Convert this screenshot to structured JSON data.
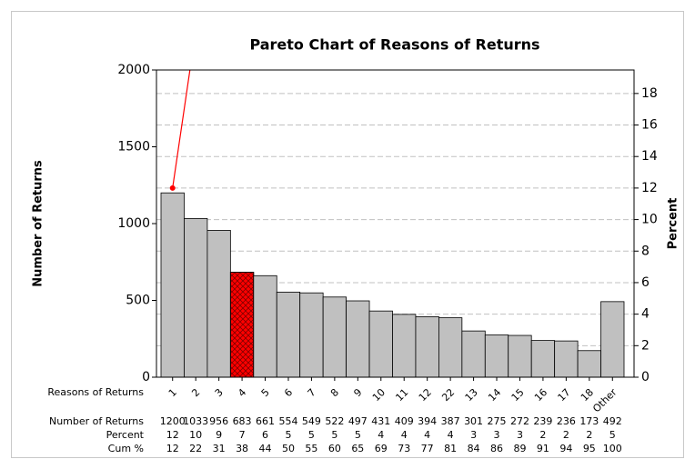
{
  "chart_data": {
    "type": "pareto",
    "title": "Pareto Chart of Reasons of Returns",
    "x_label": "Reasons of Returns",
    "y_label": "Number of Returns",
    "y2_label": "Percent",
    "categories": [
      "1",
      "2",
      "3",
      "4",
      "5",
      "6",
      "7",
      "8",
      "9",
      "10",
      "11",
      "12",
      "22",
      "13",
      "14",
      "15",
      "16",
      "17",
      "18",
      "Other"
    ],
    "values": [
      1200,
      1033,
      956,
      683,
      661,
      554,
      549,
      522,
      497,
      431,
      409,
      394,
      387,
      301,
      275,
      272,
      239,
      236,
      173,
      492
    ],
    "colors": [
      "#c0c0c0",
      "#c0c0c0",
      "#c0c0c0",
      "#ff0000",
      "#c0c0c0",
      "#c0c0c0",
      "#c0c0c0",
      "#c0c0c0",
      "#c0c0c0",
      "#c0c0c0",
      "#c0c0c0",
      "#c0c0c0",
      "#c0c0c0",
      "#c0c0c0",
      "#c0c0c0",
      "#c0c0c0",
      "#c0c0c0",
      "#c0c0c0",
      "#c0c0c0",
      "#c0c0c0"
    ],
    "table_row_labels": [
      "Number of Returns",
      "Percent",
      "Cum %"
    ],
    "percent": [
      12,
      10,
      9,
      7,
      6,
      5,
      5,
      5,
      5,
      4,
      4,
      4,
      4,
      3,
      3,
      3,
      2,
      2,
      2,
      5
    ],
    "cum_percent": [
      12,
      22,
      31,
      38,
      44,
      50,
      55,
      60,
      65,
      69,
      73,
      77,
      81,
      84,
      86,
      89,
      91,
      94,
      95,
      100
    ],
    "line_color": "#ff0000",
    "ylim": [
      0,
      2000
    ],
    "yticks": [
      0,
      500,
      1000,
      1500,
      2000
    ],
    "y2lim": [
      0,
      19.49
    ],
    "y2ticks": [
      0,
      2,
      4,
      6,
      8,
      10,
      12,
      14,
      16,
      18
    ],
    "grid": true
  }
}
